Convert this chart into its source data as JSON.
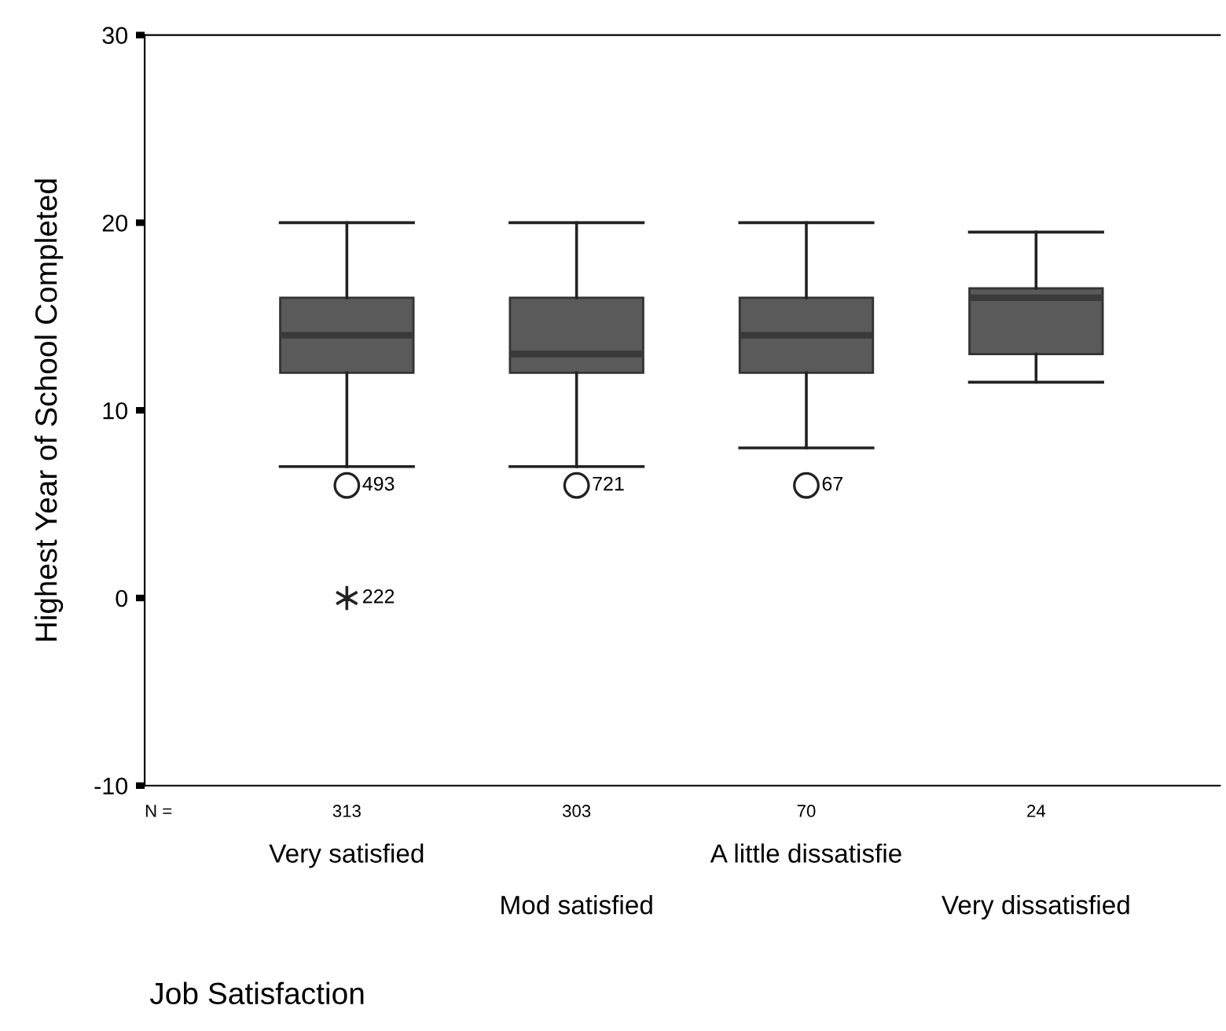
{
  "chart_data": {
    "type": "box",
    "xlabel": "Job Satisfaction",
    "ylabel": "Highest Year of School Completed",
    "categories": [
      "Very satisfied",
      "Mod satisfied",
      "A little dissatisfie",
      "Very dissatisfied"
    ],
    "boxes": [
      {
        "low": 7,
        "q1": 12,
        "median": 14,
        "q3": 16,
        "high": 20,
        "outliers": [
          6,
          0
        ]
      },
      {
        "low": 7,
        "q1": 12,
        "median": 13,
        "q3": 16,
        "high": 20,
        "outliers": [
          6
        ]
      },
      {
        "low": 8,
        "q1": 12,
        "median": 14,
        "q3": 16,
        "high": 20,
        "outliers": [
          6
        ]
      },
      {
        "low": 11.5,
        "q1": 13,
        "median": 16,
        "q3": 16.5,
        "high": 19.5
      }
    ],
    "color": "#5a5a5a",
    "ylim": [
      -10,
      30
    ],
    "yticks": [
      -10,
      0,
      10,
      20,
      30
    ],
    "grid": false,
    "annotations": [
      "N =",
      "313",
      "303",
      "70",
      "24",
      "493",
      "222",
      "721",
      "67"
    ]
  }
}
